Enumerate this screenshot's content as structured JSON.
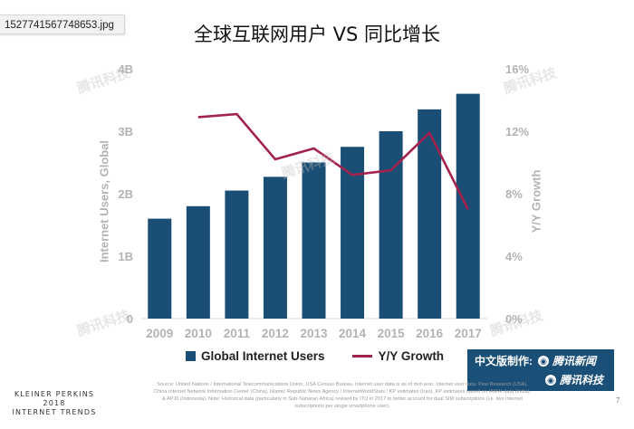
{
  "file_name": "1527741567748653.jpg",
  "chart_data": {
    "type": "bar+line",
    "title": "全球互联网用户 VS 同比增长",
    "categories": [
      "2009",
      "2010",
      "2011",
      "2012",
      "2013",
      "2014",
      "2015",
      "2016",
      "2017"
    ],
    "series": [
      {
        "name": "Global Internet Users",
        "kind": "bar",
        "axis": "left",
        "values": [
          1.6,
          1.8,
          2.05,
          2.27,
          2.5,
          2.75,
          3.0,
          3.35,
          3.6
        ]
      },
      {
        "name": "Y/Y Growth",
        "kind": "line",
        "axis": "right",
        "values": [
          null,
          12.9,
          13.1,
          10.2,
          10.9,
          9.2,
          9.5,
          11.9,
          7.0
        ]
      }
    ],
    "ylabel": "Internet Users, Global",
    "y2label": "Y/Y Growth",
    "ylim": [
      0,
      4
    ],
    "y2lim": [
      0,
      16
    ],
    "yticks": [
      "0",
      "1B",
      "2B",
      "3B",
      "4B"
    ],
    "y2ticks": [
      "0%",
      "4%",
      "8%",
      "12%",
      "16%"
    ],
    "legend": "bottom-center"
  },
  "colors": {
    "bar": "#1b4e74",
    "line": "#a3214d",
    "axis_text": "#b3b3b3"
  },
  "credit": {
    "label": "中文版制作:",
    "brand1": "腾讯新闻",
    "brand2": "腾讯科技"
  },
  "footer": {
    "brand_line1": "KLEINER PERKINS",
    "brand_line2": "2018",
    "brand_line3": "INTERNET TRENDS",
    "source": "Source: United Nations / International Telecommunications Union, USA Census Bureau. Internet user data is as of mid-year. Internet user data: Pew Research (USA), China Internet Network Information Center (China), Islamic Republic News Agency / InternetWorldStats / KP estimates (Iran), KP estimates based on IAMAI data (India), & APJII (Indonesia). Note: Historical data (particularly in Sub-Saharan Africa) revised by ITU in 2017 to better account for dual SIM subscriptions (i.e. two Internet subscriptions per single smartphone user).",
    "page": "7"
  },
  "watermark": "腾讯科技"
}
